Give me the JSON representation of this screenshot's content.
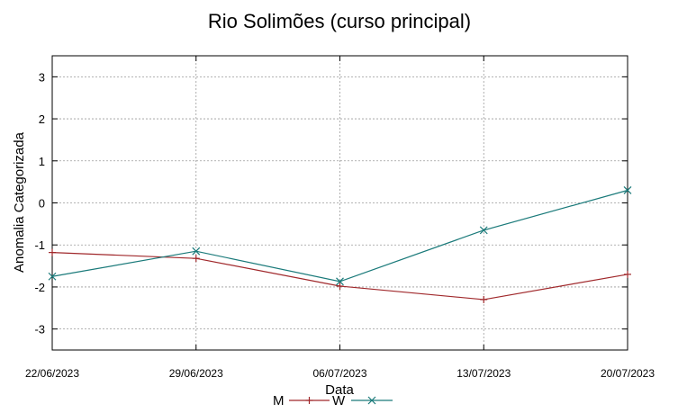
{
  "chart_data": {
    "type": "line",
    "title": "Rio Solimões (curso principal)",
    "xlabel": "Data",
    "ylabel": "Anomalia Categorizada",
    "categories": [
      "22/06/2023",
      "29/06/2023",
      "06/07/2023",
      "13/07/2023",
      "20/07/2023"
    ],
    "ylim": [
      -3.5,
      3.5
    ],
    "yticks": [
      3,
      2,
      1,
      0,
      -1,
      -2,
      -3
    ],
    "grid": true,
    "legend": "bottom-center",
    "series": [
      {
        "name": "M",
        "color": "#a0282b",
        "marker": "plus",
        "values": [
          -1.18,
          -1.32,
          -1.98,
          -2.3,
          -1.7
        ]
      },
      {
        "name": "W",
        "color": "#1a7a7a",
        "marker": "x",
        "values": [
          -1.75,
          -1.15,
          -1.87,
          -0.65,
          0.3
        ]
      }
    ]
  }
}
